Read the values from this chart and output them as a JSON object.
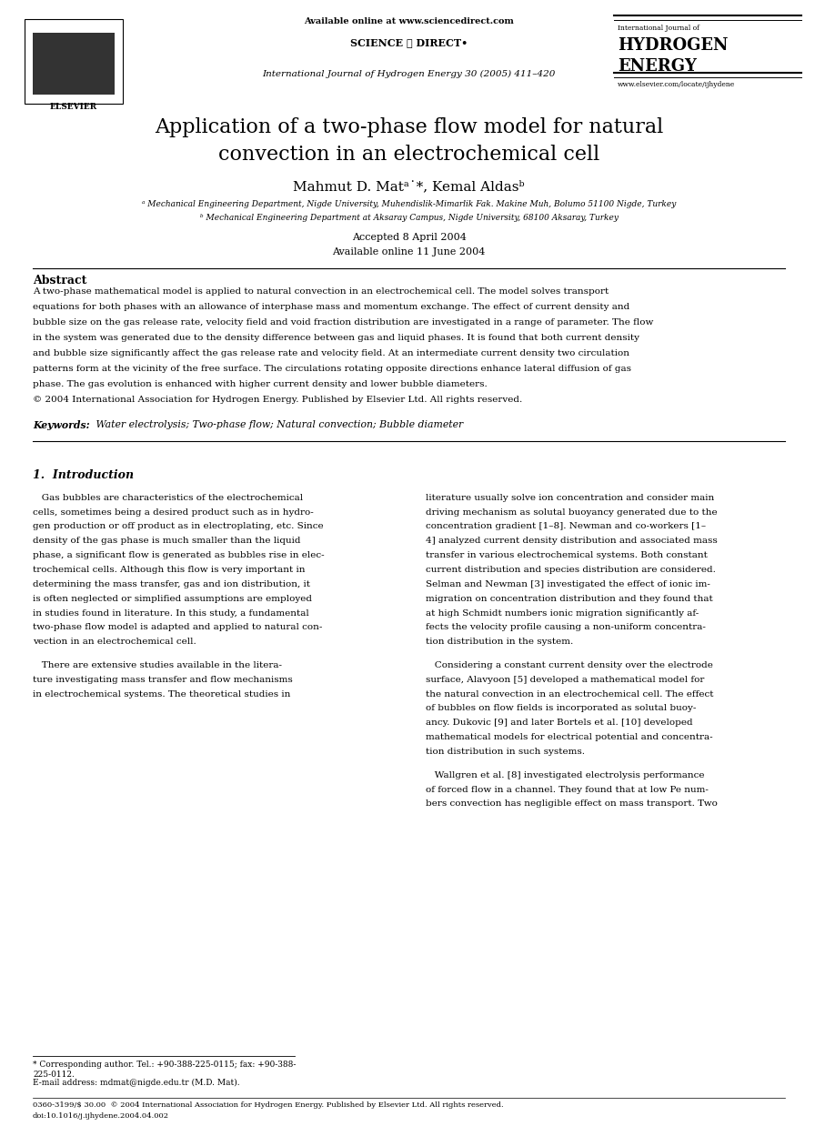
{
  "page_width": 9.07,
  "page_height": 12.38,
  "bg_color": "#ffffff",
  "header": {
    "elsevier_text": "ELSEVIER",
    "available_online": "Available online at www.sciencedirect.com",
    "science_direct": "SCIENCE ⓓ DIRECT•",
    "journal_line": "International Journal of Hydrogen Energy 30 (2005) 411–420",
    "hydrogen_energy_top": "International Journal of",
    "hydrogen_energy_big1": "HYDROGEN",
    "hydrogen_energy_big2": "ENERGY",
    "website": "www.elsevier.com/locate/ijhydene"
  },
  "title": "Application of a two-phase flow model for natural\nconvection in an electrochemical cell",
  "authors": "Mahmut D. Matᵃ˙*, Kemal Aldasᵇ",
  "affil_a": "ᵃ Mechanical Engineering Department, Nigde University, Muhendislik-Mimarlik Fak. Makine Muh, Bolumo 51100 Nigde, Turkey",
  "affil_b": "ᵇ Mechanical Engineering Department at Aksaray Campus, Nigde University, 68100 Aksaray, Turkey",
  "accepted": "Accepted 8 April 2004",
  "available_online_article": "Available online 11 June 2004",
  "abstract_title": "Abstract",
  "abstract_text": "A two-phase mathematical model is applied to natural convection in an electrochemical cell. The model solves transport\nequations for both phases with an allowance of interphase mass and momentum exchange. The effect of current density and\nbubble size on the gas release rate, velocity field and void fraction distribution are investigated in a range of parameter. The flow\nin the system was generated due to the density difference between gas and liquid phases. It is found that both current density\nand bubble size significantly affect the gas release rate and velocity field. At an intermediate current density two circulation\npatterns form at the vicinity of the free surface. The circulations rotating opposite directions enhance lateral diffusion of gas\nphase. The gas evolution is enhanced with higher current density and lower bubble diameters.\n© 2004 International Association for Hydrogen Energy. Published by Elsevier Ltd. All rights reserved.",
  "keywords_label": "Keywords:",
  "keywords_text": " Water electrolysis; Two-phase flow; Natural convection; Bubble diameter",
  "section1_title": "1.  Introduction",
  "section1_col1_para1": "Gas bubbles are characteristics of the electrochemical\ncells, sometimes being a desired product such as in hydro-\ngen production or off product as in electroplating, etc. Since\ndensity of the gas phase is much smaller than the liquid\nphase, a significant flow is generated as bubbles rise in elec-\ntrochemical cells. Although this flow is very important in\ndetermining the mass transfer, gas and ion distribution, it\nis often neglected or simplified assumptions are employed\nin studies found in literature. In this study, a fundamental\ntwo-phase flow model is adapted and applied to natural con-\nvection in an electrochemical cell.",
  "section1_col1_para2": "There are extensive studies available in the litera-\nture investigating mass transfer and flow mechanisms\nin electrochemical systems. The theoretical studies in",
  "section1_col2_para1": "literature usually solve ion concentration and consider main\ndriving mechanism as solutal buoyancy generated due to the\nconcentration gradient [1–8]. Newman and co-workers [1–\n4] analyzed current density distribution and associated mass\ntransfer in various electrochemical systems. Both constant\ncurrent distribution and species distribution are considered.\nSelman and Newman [3] investigated the effect of ionic im-\nmigration on concentration distribution and they found that\nat high Schmidt numbers ionic migration significantly af-\nfects the velocity profile causing a non-uniform concentra-\ntion distribution in the system.",
  "section1_col2_para2": "Considering a constant current density over the electrode\nsurface, Alavyoon [5] developed a mathematical model for\nthe natural convection in an electrochemical cell. The effect\nof bubbles on flow fields is incorporated as solutal buoy-\nancy. Dukovic [9] and later Bortels et al. [10] developed\nmathematical models for electrical potential and concentra-\ntion distribution in such systems.",
  "section1_col2_para3": "Wallgren et al. [8] investigated electrolysis performance\nof forced flow in a channel. They found that at low Pe num-\nbers convection has negligible effect on mass transport. Two",
  "footnote_star": "* Corresponding author. Tel.: +90-388-225-0115; fax: +90-388-\n225-0112.",
  "footnote_email": "E-mail address: mdmat@nigde.edu.tr (M.D. Mat).",
  "bottom_line1": "0360-3199/$ 30.00  © 2004 International Association for Hydrogen Energy. Published by Elsevier Ltd. All rights reserved.",
  "bottom_line2": "doi:10.1016/j.ijhydene.2004.04.002"
}
